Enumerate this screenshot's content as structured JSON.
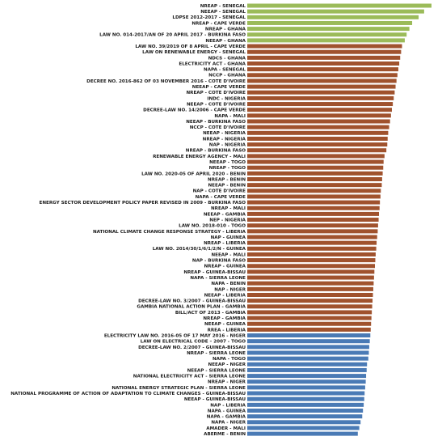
{
  "chart_data": {
    "type": "bar",
    "orientation": "horizontal",
    "title": "",
    "xlabel": "",
    "ylabel": "",
    "xlim": [
      0,
      100
    ],
    "grid": false,
    "legend": "none",
    "group_colors": {
      "green": "#9bbb59",
      "brown": "#a0522d",
      "blue": "#4a7ab5"
    },
    "bars": [
      {
        "label": "NREAP - SENEGAL",
        "value": 100,
        "group": "green"
      },
      {
        "label": "NEEAP - SENEGAL",
        "value": 96,
        "group": "green"
      },
      {
        "label": "LDPSE 2012-2017 - SENEGAL",
        "value": 93,
        "group": "green"
      },
      {
        "label": "NREAP - CAPE VERDE",
        "value": 89.5,
        "group": "green"
      },
      {
        "label": "NREAP - GHANA",
        "value": 88,
        "group": "green"
      },
      {
        "label": "LAW NO. 014-2017/AN OF 20 APRIL 2017 - BURKINA FASO",
        "value": 86.5,
        "group": "green"
      },
      {
        "label": "NEEAP - GHANA",
        "value": 85.5,
        "group": "green"
      },
      {
        "label": "LAW NO. 39/2019 OF 8 APRIL - CAPE VERDE",
        "value": 84,
        "group": "brown"
      },
      {
        "label": "LAW ON RENEWABLE ENERGY - SENEGAL",
        "value": 83.5,
        "group": "brown"
      },
      {
        "label": "NDCS - GHANA",
        "value": 83,
        "group": "brown"
      },
      {
        "label": "ELECTRICITY ACT - GHANA",
        "value": 82.5,
        "group": "brown"
      },
      {
        "label": "NAPA - SENEGAL",
        "value": 82,
        "group": "brown"
      },
      {
        "label": "NCCP - GHANA",
        "value": 81.5,
        "group": "brown"
      },
      {
        "label": "DECREE NO. 2016-862 OF 03 NOVEMBER 2016 - COTE D'IVOIRE",
        "value": 81,
        "group": "brown"
      },
      {
        "label": "NEEAP - CAPE VERDE",
        "value": 80.5,
        "group": "brown"
      },
      {
        "label": "NREAP - COTE D'IVOIRE",
        "value": 80,
        "group": "brown"
      },
      {
        "label": "INDC - NIGERIA",
        "value": 79.5,
        "group": "brown"
      },
      {
        "label": "NEEAP - COTE D'IVOIRE",
        "value": 79,
        "group": "brown"
      },
      {
        "label": "DECREE-LAW NO. 14/2006 - CAPE VERDE",
        "value": 78.5,
        "group": "brown"
      },
      {
        "label": "NAPA - MALI",
        "value": 78,
        "group": "brown"
      },
      {
        "label": "NEEAP - BURKINA FASO",
        "value": 77.5,
        "group": "brown"
      },
      {
        "label": "NCCP - COTE D'IVOIRE",
        "value": 77,
        "group": "brown"
      },
      {
        "label": "NEEAP - NIGERIA",
        "value": 76.5,
        "group": "brown"
      },
      {
        "label": "NREAP - NIGERIA",
        "value": 76.2,
        "group": "brown"
      },
      {
        "label": "NAP - NIGERIA",
        "value": 76,
        "group": "brown"
      },
      {
        "label": "NREAP - BURKINA FASO",
        "value": 75.5,
        "group": "brown"
      },
      {
        "label": "RENEWABLE ENERGY AGENCY - MALI",
        "value": 74.5,
        "group": "brown"
      },
      {
        "label": "NEEAP - TOGO",
        "value": 74,
        "group": "brown"
      },
      {
        "label": "NREAP - TOGO",
        "value": 73.8,
        "group": "brown"
      },
      {
        "label": "LAW NO. 2020-05 OF APRIL 2020 - BENIN",
        "value": 73.5,
        "group": "brown"
      },
      {
        "label": "NREAP - BENIN",
        "value": 73.2,
        "group": "brown"
      },
      {
        "label": "NEEAP - BENIN",
        "value": 73,
        "group": "brown"
      },
      {
        "label": "NAP - COTE D'IVOIRE",
        "value": 72.5,
        "group": "brown"
      },
      {
        "label": "NAPA - CAPE VERDE",
        "value": 72.3,
        "group": "brown"
      },
      {
        "label": "ENERGY SECTOR DEVELOPMENT POLICY PAPER REVISED IN 2009 - BURKINA FASO",
        "value": 72,
        "group": "brown"
      },
      {
        "label": "NREAP - MALI",
        "value": 71.8,
        "group": "brown"
      },
      {
        "label": "NEEAP - GAMBIA",
        "value": 71.5,
        "group": "brown"
      },
      {
        "label": "NEP - NIGERIA",
        "value": 71.3,
        "group": "brown"
      },
      {
        "label": "LAW NO. 2018-010 - TOGO",
        "value": 71,
        "group": "brown"
      },
      {
        "label": "NATIONAL CLIMATE CHANGE RESPONSE STRATEGY - LIBERIA",
        "value": 70.8,
        "group": "brown"
      },
      {
        "label": "NAP - GUINEA",
        "value": 70.5,
        "group": "brown"
      },
      {
        "label": "NREAP - LIBERIA",
        "value": 70.2,
        "group": "brown"
      },
      {
        "label": "LAW NO. 2014/30/1/6/1/2/N - GUINEA",
        "value": 70,
        "group": "brown"
      },
      {
        "label": "NEEAP - MALI",
        "value": 69.7,
        "group": "brown"
      },
      {
        "label": "NAP - BURKINA FASO",
        "value": 69.5,
        "group": "brown"
      },
      {
        "label": "NREAP - GUINEA",
        "value": 69.3,
        "group": "brown"
      },
      {
        "label": "NREAP - GUINEA-BISSAU",
        "value": 69,
        "group": "brown"
      },
      {
        "label": "NAPA - SIERRA LEONE",
        "value": 68.8,
        "group": "brown"
      },
      {
        "label": "NAPA - BENIN",
        "value": 68.6,
        "group": "brown"
      },
      {
        "label": "NAP - NIGER",
        "value": 68.4,
        "group": "brown"
      },
      {
        "label": "NEEAP - LIBERIA",
        "value": 68.2,
        "group": "brown"
      },
      {
        "label": "DECREE-LAW NO. 3/2007 - GUINEA-BISSAU",
        "value": 68,
        "group": "brown"
      },
      {
        "label": "GAMBIA NATIONAL ACTION PLAN - GAMBIA",
        "value": 67.8,
        "group": "brown"
      },
      {
        "label": "BILL/ACT OF 2013 - GAMBIA",
        "value": 67.6,
        "group": "brown"
      },
      {
        "label": "NREAP - GAMBIA",
        "value": 67.4,
        "group": "brown"
      },
      {
        "label": "NEEAP - GUINEA",
        "value": 67.2,
        "group": "brown"
      },
      {
        "label": "RREA - LIBERIA",
        "value": 67,
        "group": "brown"
      },
      {
        "label": "ELECTRICITY LAW NO. 2016-05 OF 17 MAY 2016 - NIGER",
        "value": 66.8,
        "group": "blue"
      },
      {
        "label": "LAW ON ELECTRICAL CODE – 2007 - TOGO",
        "value": 66.5,
        "group": "blue"
      },
      {
        "label": "DECREE-LAW NO. 2/2007 - GUINEA-BISSAU",
        "value": 66.2,
        "group": "blue"
      },
      {
        "label": "NREAP - SIERRA LEONE",
        "value": 66,
        "group": "blue"
      },
      {
        "label": "NAPA - TOGO",
        "value": 65.7,
        "group": "blue"
      },
      {
        "label": "NEEAP - NIGER",
        "value": 65,
        "group": "blue"
      },
      {
        "label": "NEEAP - SIERRA LEONE",
        "value": 64.8,
        "group": "blue"
      },
      {
        "label": "NATIONAL ELECTRICITY ACT - SIERRA LEONE",
        "value": 64.5,
        "group": "blue"
      },
      {
        "label": "NREAP - NIGER",
        "value": 64.3,
        "group": "blue"
      },
      {
        "label": "NATIONAL ENERGY STRATEGIC PLAN - SIERRA LEONE",
        "value": 64,
        "group": "blue"
      },
      {
        "label": "NATIONAL PROGRAMME OF ACTION OF ADAPTATION TO CLIMATE CHANGES - GUINEA-BISSAU",
        "value": 63.7,
        "group": "blue"
      },
      {
        "label": "NEEAP - GUINEA-BISSAU",
        "value": 63.5,
        "group": "blue"
      },
      {
        "label": "NAP - LIBERIA",
        "value": 63.2,
        "group": "blue"
      },
      {
        "label": "NAPA - GUINEA",
        "value": 62.8,
        "group": "blue"
      },
      {
        "label": "NAPA - GAMBIA",
        "value": 62.4,
        "group": "blue"
      },
      {
        "label": "NAPA - NIGER",
        "value": 61.5,
        "group": "blue"
      },
      {
        "label": "AMADER - MALI",
        "value": 60.8,
        "group": "blue"
      },
      {
        "label": "ABERME - BENIN",
        "value": 60,
        "group": "blue"
      }
    ]
  }
}
